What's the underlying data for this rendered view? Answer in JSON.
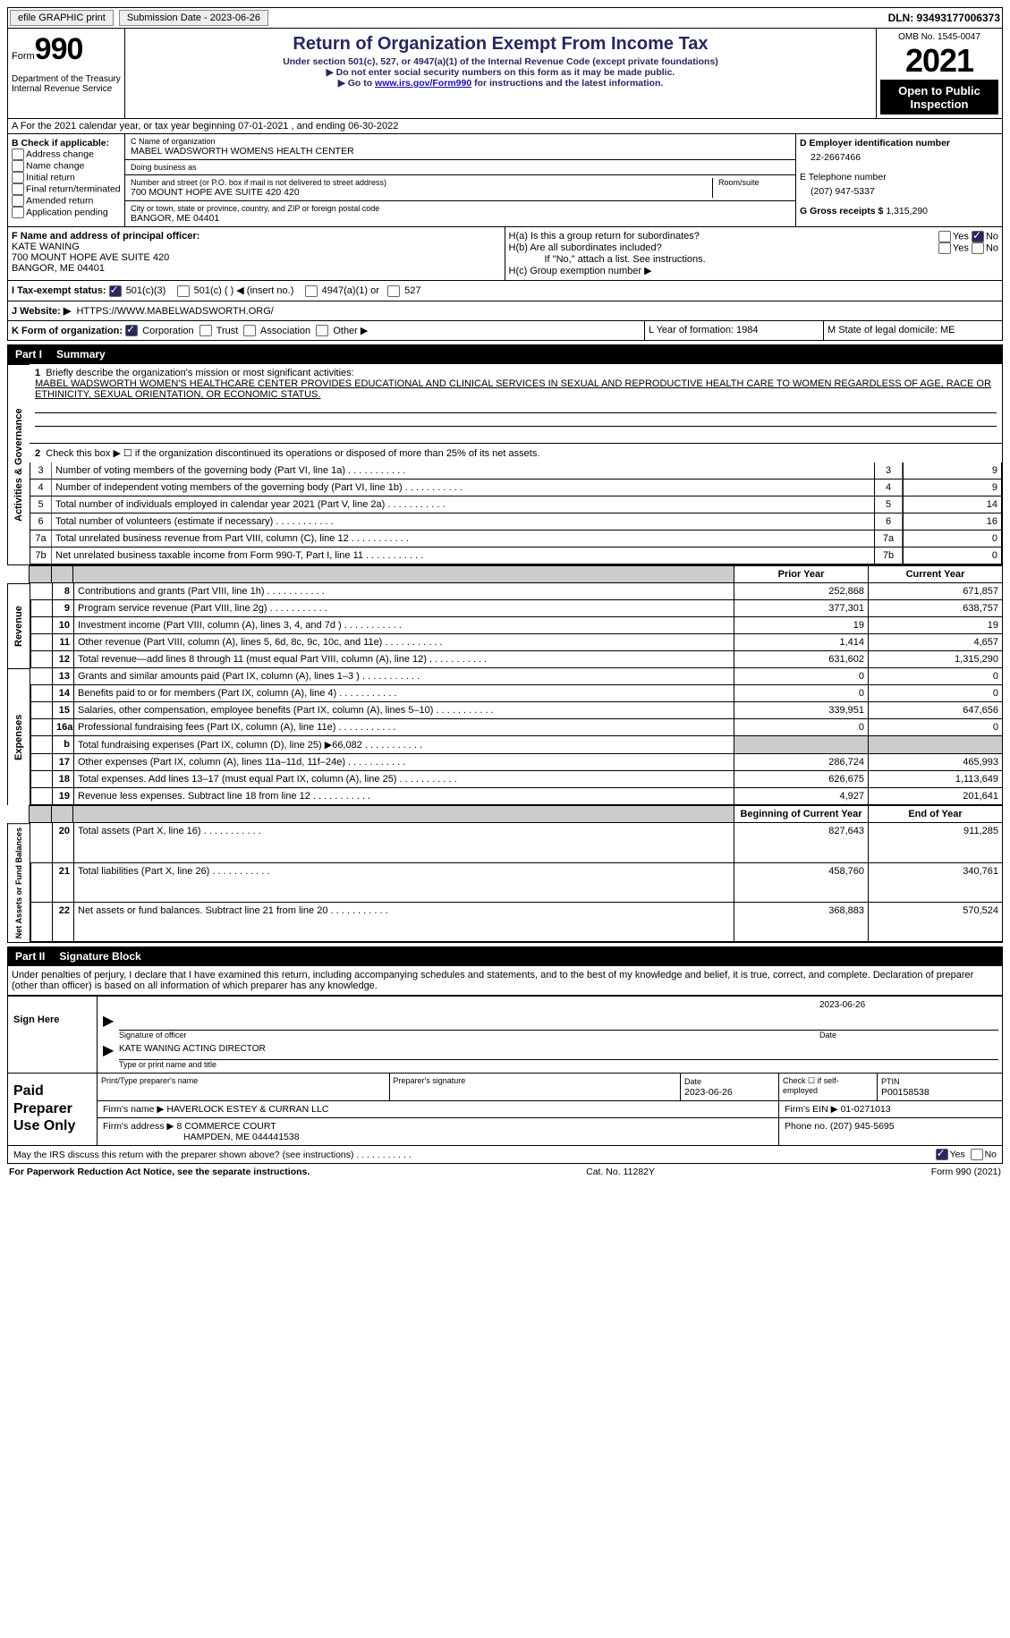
{
  "topBar": {
    "efile": "efile GRAPHIC print",
    "submission": "Submission Date - 2023-06-26",
    "dln": "DLN: 93493177006373"
  },
  "header": {
    "formLabel": "Form",
    "formNo": "990",
    "title": "Return of Organization Exempt From Income Tax",
    "sub1": "Under section 501(c), 527, or 4947(a)(1) of the Internal Revenue Code (except private foundations)",
    "sub2": "▶ Do not enter social security numbers on this form as it may be made public.",
    "sub3": "▶ Go to ",
    "link": "www.irs.gov/Form990",
    "sub3b": " for instructions and the latest information.",
    "dept": "Department of the Treasury\nInternal Revenue Service",
    "omb": "OMB No. 1545-0047",
    "year": "2021",
    "open": "Open to Public Inspection"
  },
  "a": "A For the 2021 calendar year, or tax year beginning 07-01-2021    , and ending 06-30-2022",
  "b": {
    "label": "B Check if applicable:",
    "items": [
      "Address change",
      "Name change",
      "Initial return",
      "Final return/terminated",
      "Amended return",
      "Application pending"
    ]
  },
  "c": {
    "nameLabel": "C Name of organization",
    "name": "MABEL WADSWORTH WOMENS HEALTH CENTER",
    "dbaLabel": "Doing business as",
    "dba": "",
    "streetLabel": "Number and street (or P.O. box if mail is not delivered to street address)",
    "street": "700 MOUNT HOPE AVE SUITE 420 420",
    "roomLabel": "Room/suite",
    "room": "",
    "cityLabel": "City or town, state or province, country, and ZIP or foreign postal code",
    "city": "BANGOR, ME  04401"
  },
  "d": {
    "label": "D Employer identification number",
    "ein": "22-2667466",
    "telLabel": "E Telephone number",
    "tel": "(207) 947-5337",
    "grossLabel": "G Gross receipts $",
    "gross": "1,315,290"
  },
  "f": {
    "label": "F  Name and address of principal officer:",
    "name": "KATE WANING",
    "addr": "700 MOUNT HOPE AVE SUITE 420",
    "city": "BANGOR, ME  04401"
  },
  "h": {
    "a": "H(a)  Is this a group return for subordinates?",
    "b": "H(b)  Are all subordinates included?",
    "note": "If \"No,\" attach a list. See instructions.",
    "c": "H(c)  Group exemption number ▶"
  },
  "i": {
    "label": "I    Tax-exempt status:",
    "c3": "501(c)(3)",
    "c": "501(c) (  ) ◀ (insert no.)",
    "a1": "4947(a)(1) or",
    "s527": "527"
  },
  "j": {
    "label": "J    Website: ▶",
    "url": "HTTPS://WWW.MABELWADSWORTH.ORG/"
  },
  "k": {
    "label": "K Form of organization:",
    "corp": "Corporation",
    "trust": "Trust",
    "assoc": "Association",
    "other": "Other ▶",
    "l": "L Year of formation: 1984",
    "m": "M State of legal domicile: ME"
  },
  "part1": {
    "label": "Part I",
    "title": "Summary"
  },
  "sideLabels": {
    "gov": "Activities & Governance",
    "rev": "Revenue",
    "exp": "Expenses",
    "net": "Net Assets or Fund Balances"
  },
  "line1": {
    "label": "Briefly describe the organization's mission or most significant activities:",
    "text": "MABEL WADSWORTH WOMEN'S HEALTHCARE CENTER PROVIDES EDUCATIONAL AND CLINICAL SERVICES IN SEXUAL AND REPRODUCTIVE HEALTH CARE TO WOMEN REGARDLESS OF AGE, RACE OR ETHINICITY, SEXUAL ORIENTATION, OR ECONOMIC STATUS."
  },
  "line2": "Check this box ▶ ☐  if the organization discontinued its operations or disposed of more than 25% of its net assets.",
  "sumA": [
    {
      "n": "3",
      "t": "Number of voting members of the governing body (Part VI, line 1a)",
      "v": "9"
    },
    {
      "n": "4",
      "t": "Number of independent voting members of the governing body (Part VI, line 1b)",
      "v": "9"
    },
    {
      "n": "5",
      "t": "Total number of individuals employed in calendar year 2021 (Part V, line 2a)",
      "v": "14"
    },
    {
      "n": "6",
      "t": "Total number of volunteers (estimate if necessary)",
      "v": "16"
    },
    {
      "n": "7a",
      "t": "Total unrelated business revenue from Part VIII, column (C), line 12",
      "v": "0"
    },
    {
      "n": "7b",
      "t": "Net unrelated business taxable income from Form 990-T, Part I, line 11",
      "v": "0"
    }
  ],
  "sumHdr": {
    "py": "Prior Year",
    "cy": "Current Year",
    "boy": "Beginning of Current Year",
    "eoy": "End of Year"
  },
  "rev": [
    {
      "n": "8",
      "t": "Contributions and grants (Part VIII, line 1h)",
      "p": "252,868",
      "c": "671,857"
    },
    {
      "n": "9",
      "t": "Program service revenue (Part VIII, line 2g)",
      "p": "377,301",
      "c": "638,757"
    },
    {
      "n": "10",
      "t": "Investment income (Part VIII, column (A), lines 3, 4, and 7d )",
      "p": "19",
      "c": "19"
    },
    {
      "n": "11",
      "t": "Other revenue (Part VIII, column (A), lines 5, 6d, 8c, 9c, 10c, and 11e)",
      "p": "1,414",
      "c": "4,657"
    },
    {
      "n": "12",
      "t": "Total revenue—add lines 8 through 11 (must equal Part VIII, column (A), line 12)",
      "p": "631,602",
      "c": "1,315,290"
    }
  ],
  "exp": [
    {
      "n": "13",
      "t": "Grants and similar amounts paid (Part IX, column (A), lines 1–3 )",
      "p": "0",
      "c": "0"
    },
    {
      "n": "14",
      "t": "Benefits paid to or for members (Part IX, column (A), line 4)",
      "p": "0",
      "c": "0"
    },
    {
      "n": "15",
      "t": "Salaries, other compensation, employee benefits (Part IX, column (A), lines 5–10)",
      "p": "339,951",
      "c": "647,656"
    },
    {
      "n": "16a",
      "t": "Professional fundraising fees (Part IX, column (A), line 11e)",
      "p": "0",
      "c": "0"
    },
    {
      "n": "b",
      "t": "Total fundraising expenses (Part IX, column (D), line 25) ▶66,082",
      "p": "",
      "c": "",
      "shade": true
    },
    {
      "n": "17",
      "t": "Other expenses (Part IX, column (A), lines 11a–11d, 11f–24e)",
      "p": "286,724",
      "c": "465,993"
    },
    {
      "n": "18",
      "t": "Total expenses. Add lines 13–17 (must equal Part IX, column (A), line 25)",
      "p": "626,675",
      "c": "1,113,649"
    },
    {
      "n": "19",
      "t": "Revenue less expenses. Subtract line 18 from line 12",
      "p": "4,927",
      "c": "201,641"
    }
  ],
  "net": [
    {
      "n": "20",
      "t": "Total assets (Part X, line 16)",
      "p": "827,643",
      "c": "911,285"
    },
    {
      "n": "21",
      "t": "Total liabilities (Part X, line 26)",
      "p": "458,760",
      "c": "340,761"
    },
    {
      "n": "22",
      "t": "Net assets or fund balances. Subtract line 21 from line 20",
      "p": "368,883",
      "c": "570,524"
    }
  ],
  "part2": {
    "label": "Part II",
    "title": "Signature Block"
  },
  "penalty": "Under penalties of perjury, I declare that I have examined this return, including accompanying schedules and statements, and to the best of my knowledge and belief, it is true, correct, and complete. Declaration of preparer (other than officer) is based on all information of which preparer has any knowledge.",
  "sign": {
    "here": "Sign Here",
    "sigOf": "Signature of officer",
    "date": "2023-06-26",
    "name": "KATE WANING  ACTING DIRECTOR",
    "typeOr": "Type or print name and title",
    "dateLabel": "Date"
  },
  "prep": {
    "label": "Paid Preparer Use Only",
    "nameLabel": "Print/Type preparer's name",
    "sigLabel": "Preparer's signature",
    "dateLabel": "Date",
    "date": "2023-06-26",
    "checkLabel": "Check ☐ if self-employed",
    "ptinLabel": "PTIN",
    "ptin": "P00158538",
    "firmNameLabel": "Firm's name    ▶",
    "firmName": "HAVERLOCK ESTEY & CURRAN LLC",
    "firmEinLabel": "Firm's EIN ▶",
    "firmEin": "01-0271013",
    "firmAddrLabel": "Firm's address ▶",
    "firmAddr": "8 COMMERCE COURT",
    "firmCity": "HAMPDEN, ME  044441538",
    "phoneLabel": "Phone no.",
    "phone": "(207) 945-5695"
  },
  "discuss": "May the IRS discuss this return with the preparer shown above? (see instructions)",
  "footer": {
    "pra": "For Paperwork Reduction Act Notice, see the separate instructions.",
    "cat": "Cat. No. 11282Y",
    "form": "Form 990 (2021)"
  }
}
